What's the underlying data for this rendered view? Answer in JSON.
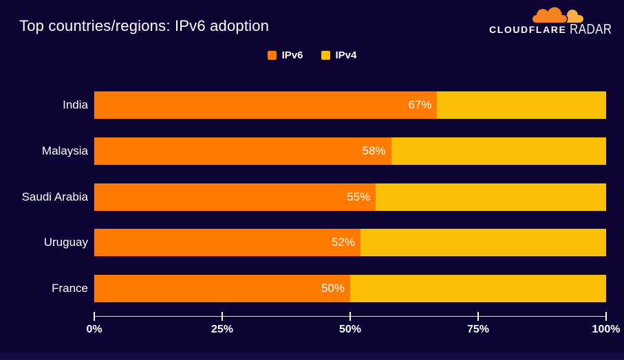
{
  "header": {
    "title": "Top countries/regions: IPv6 adoption",
    "brand": "CLOUDFLARE",
    "brand_suffix": "RADAR"
  },
  "legend": [
    {
      "label": "IPv6",
      "color": "#FF7A00"
    },
    {
      "label": "IPv4",
      "color": "#F9C006"
    }
  ],
  "colors": {
    "background": "#0D0433",
    "ipv6": "#FF7A00",
    "ipv4": "#F9C006",
    "text": "#FFFFFF",
    "logo_orange": "#F6821F",
    "logo_yellow": "#FBAD41"
  },
  "chart_data": {
    "type": "bar",
    "orientation": "horizontal",
    "stacked": true,
    "title": "Top countries/regions: IPv6 adoption",
    "categories": [
      "India",
      "Malaysia",
      "Saudi Arabia",
      "Uruguay",
      "France"
    ],
    "series": [
      {
        "name": "IPv6",
        "color": "#FF7A00",
        "values": [
          67,
          58,
          55,
          52,
          50
        ]
      },
      {
        "name": "IPv4",
        "color": "#F9C006",
        "values": [
          33,
          42,
          45,
          48,
          50
        ]
      }
    ],
    "bar_labels": [
      "67%",
      "58%",
      "55%",
      "52%",
      "50%"
    ],
    "xlabel": "",
    "ylabel": "",
    "xlim": [
      0,
      100
    ],
    "x_ticks": [
      "0%",
      "25%",
      "50%",
      "75%",
      "100%"
    ],
    "x_tick_values": [
      0,
      25,
      50,
      75,
      100
    ],
    "legend_position": "top-center",
    "grid": false
  }
}
